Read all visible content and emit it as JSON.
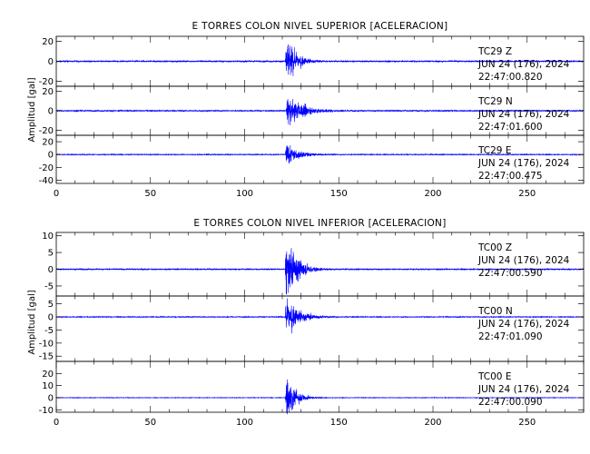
{
  "chart_data": [
    {
      "type": "line",
      "title": "E TORRES COLON NIVEL SUPERIOR [ACELERACION]",
      "ylabel": "Amplitud [gal]",
      "xlabel": "",
      "xlim": [
        0,
        280
      ],
      "x_ticks": [
        "0",
        "50",
        "100",
        "150",
        "200",
        "250"
      ],
      "grid": false,
      "series": [
        {
          "station": "TC29",
          "component": "Z",
          "date": "JUN 24 (176), 2024",
          "time": "22:47:00.820",
          "ylim": [
            -25,
            25
          ],
          "y_ticks": [
            "20",
            "0",
            "-20"
          ],
          "onset_s": 121.5,
          "peak_gal": 23,
          "noise_gal": 0.6,
          "decay_s": 5.5,
          "color": "#0000ff"
        },
        {
          "station": "TC29",
          "component": "N",
          "date": "JUN 24 (176), 2024",
          "time": "22:47:01.600",
          "ylim": [
            -25,
            25
          ],
          "y_ticks": [
            "20",
            "0",
            "-20"
          ],
          "onset_s": 122,
          "peak_gal": 15,
          "noise_gal": 0.6,
          "decay_s": 9,
          "color": "#0000ff"
        },
        {
          "station": "TC29",
          "component": "E",
          "date": "JUN 24 (176), 2024",
          "time": "22:47:00.475",
          "ylim": [
            -45,
            30
          ],
          "y_ticks": [
            "20",
            "0",
            "-20",
            "-40"
          ],
          "onset_s": 121.5,
          "peak_gal": 15,
          "noise_gal": 0.6,
          "decay_s": 7,
          "color": "#0000ff"
        }
      ]
    },
    {
      "type": "line",
      "title": "E TORRES COLON NIVEL INFERIOR [ACELERACION]",
      "ylabel": "Amplitud [gal]",
      "xlabel": "",
      "xlim": [
        0,
        280
      ],
      "x_ticks": [
        "0",
        "50",
        "100",
        "150",
        "200",
        "250"
      ],
      "grid": false,
      "series": [
        {
          "station": "TC00",
          "component": "Z",
          "date": "JUN 24 (176), 2024",
          "time": "22:47:00.590",
          "ylim": [
            -8,
            11
          ],
          "y_ticks": [
            "10",
            "5",
            "0",
            "-5"
          ],
          "onset_s": 121.5,
          "peak_gal": 9,
          "noise_gal": 0.15,
          "decay_s": 6,
          "color": "#0000ff"
        },
        {
          "station": "TC00",
          "component": "N",
          "date": "JUN 24 (176), 2024",
          "time": "22:47:01.090",
          "ylim": [
            -17,
            8
          ],
          "y_ticks": [
            "5",
            "0",
            "-5",
            "-10",
            "-15"
          ],
          "onset_s": 121.5,
          "peak_gal": 7,
          "noise_gal": 0.15,
          "decay_s": 7,
          "color": "#0000ff"
        },
        {
          "station": "TC00",
          "component": "E",
          "date": "JUN 24 (176), 2024",
          "time": "22:47:00.090",
          "ylim": [
            -12,
            30
          ],
          "y_ticks": [
            "20",
            "10",
            "0",
            "-10"
          ],
          "onset_s": 121.5,
          "peak_gal": 17,
          "noise_gal": 0.2,
          "decay_s": 5,
          "color": "#0000ff"
        }
      ]
    }
  ]
}
